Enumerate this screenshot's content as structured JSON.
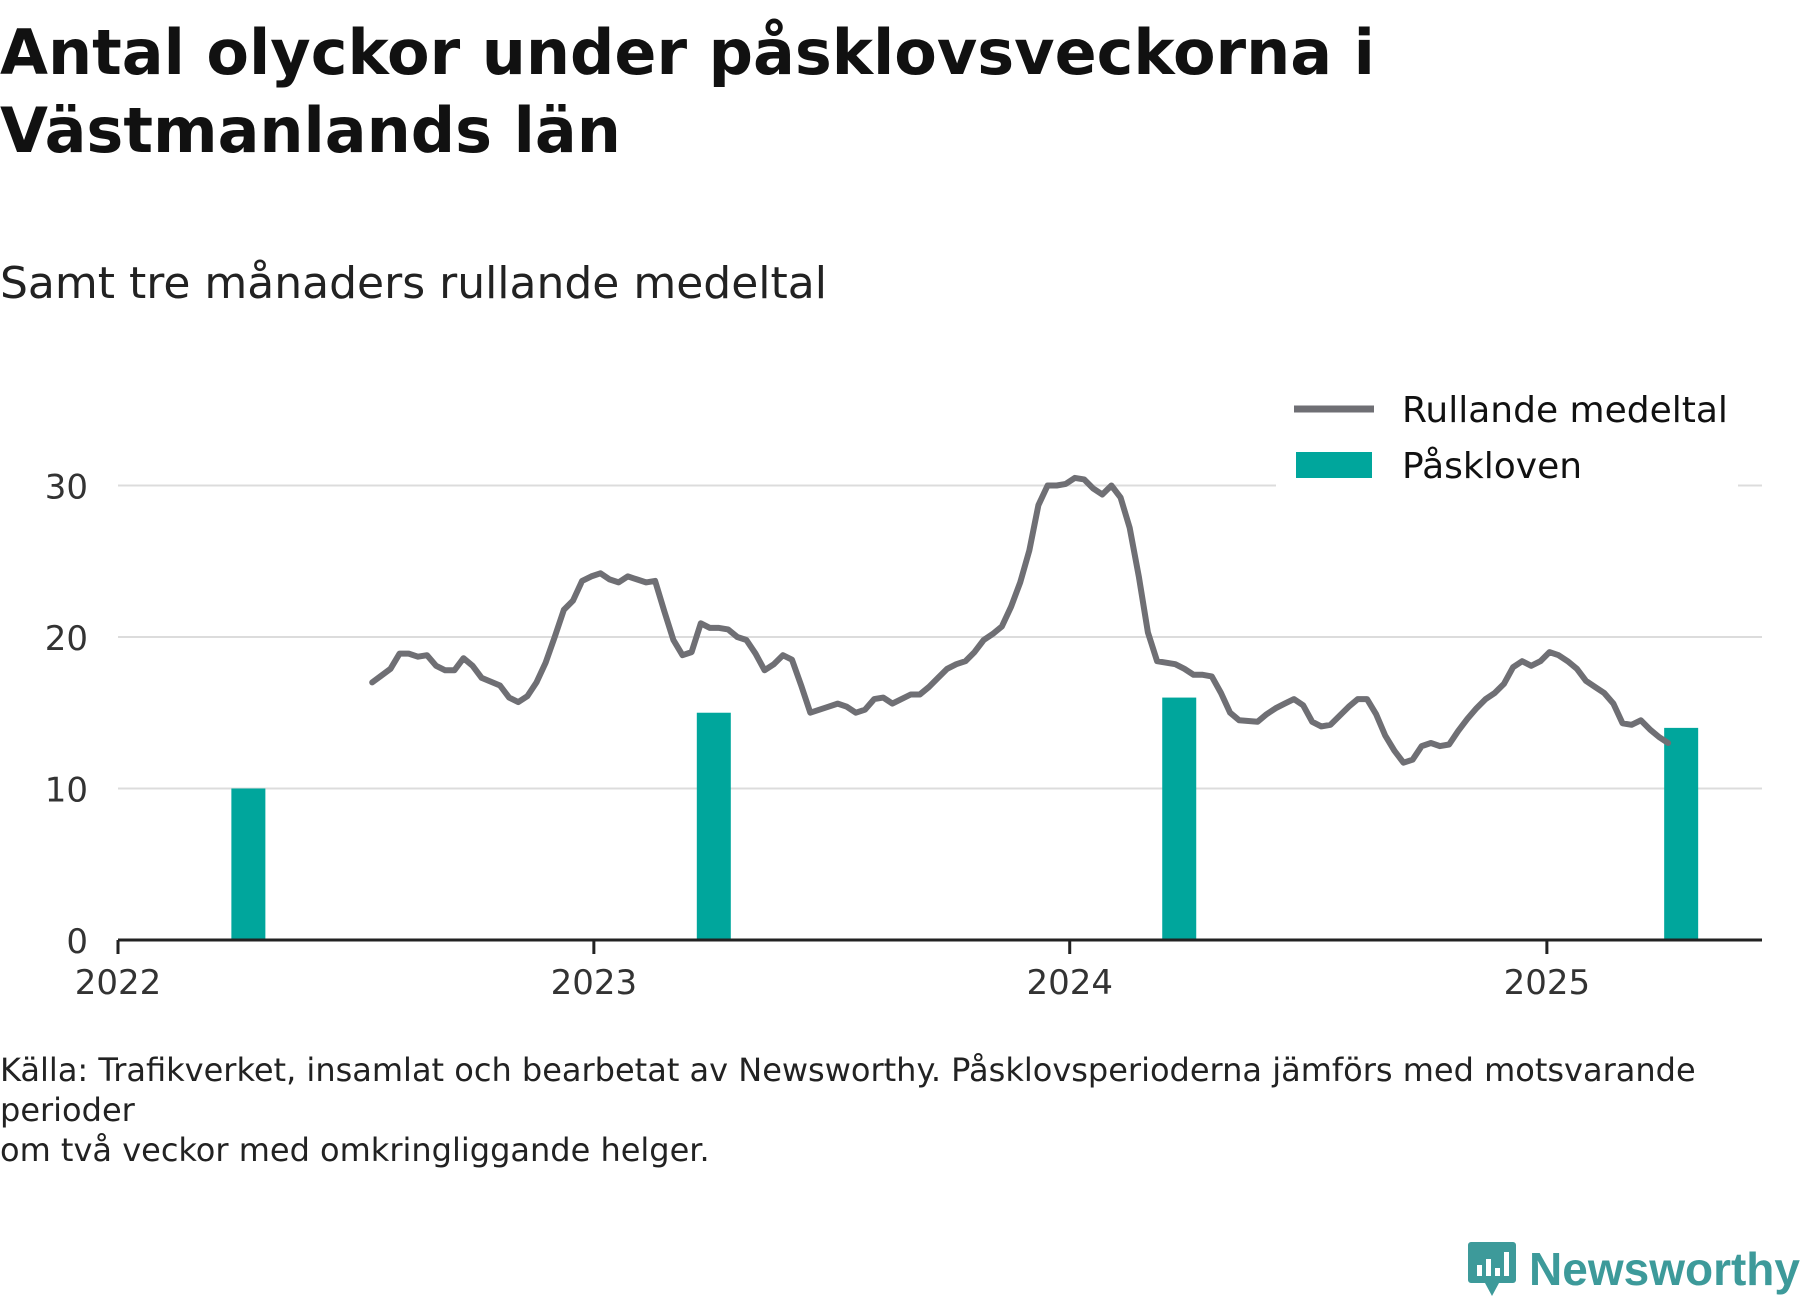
{
  "title": "Antal olyckor under påsklovsveckorna i Västmanlands län",
  "subtitle": "Samt tre månaders rullande medeltal",
  "footer": {
    "line1": "Källa: Trafikverket, insamlat och bearbetat av Newsworthy. Påsklovsperioderna jämförs med motsvarande perioder",
    "line2": "om två veckor med omkringliggande helger."
  },
  "brand": {
    "name": "Newsworthy"
  },
  "colors": {
    "line": "#6f6f74",
    "bar": "#00a69c",
    "grid": "#dcdcdc",
    "axis": "#222222",
    "brand": "#3d9a9a"
  },
  "chart_data": {
    "type": "bar+line",
    "x_axis": {
      "type": "time",
      "range": [
        "2022-01-01",
        "2025-06-15"
      ],
      "ticks": [
        "2022",
        "2023",
        "2024",
        "2025"
      ]
    },
    "y_axis": {
      "range": [
        0,
        33
      ],
      "ticks": [
        0,
        10,
        20,
        30
      ]
    },
    "grid": true,
    "legend": {
      "position": "top-right",
      "entries": [
        {
          "label": "Rullande medeltal",
          "type": "line"
        },
        {
          "label": "Påskloven",
          "type": "bar"
        }
      ]
    },
    "bars": {
      "name": "Påskloven",
      "points": [
        {
          "x": "2022-04-11",
          "y": 10
        },
        {
          "x": "2023-04-03",
          "y": 15
        },
        {
          "x": "2024-03-25",
          "y": 16
        },
        {
          "x": "2025-04-14",
          "y": 14
        }
      ]
    },
    "line": {
      "name": "Rullande medeltal",
      "points": [
        [
          "2022-07-15",
          17.0
        ],
        [
          "2022-07-29",
          17.9
        ],
        [
          "2022-08-05",
          18.9
        ],
        [
          "2022-08-12",
          18.9
        ],
        [
          "2022-08-19",
          18.7
        ],
        [
          "2022-08-26",
          18.8
        ],
        [
          "2022-09-02",
          18.1
        ],
        [
          "2022-09-09",
          17.8
        ],
        [
          "2022-09-16",
          17.8
        ],
        [
          "2022-09-23",
          18.6
        ],
        [
          "2022-09-30",
          18.1
        ],
        [
          "2022-10-07",
          17.3
        ],
        [
          "2022-10-21",
          16.8
        ],
        [
          "2022-10-28",
          16.0
        ],
        [
          "2022-11-04",
          15.7
        ],
        [
          "2022-11-11",
          16.1
        ],
        [
          "2022-11-18",
          17.0
        ],
        [
          "2022-11-25",
          18.3
        ],
        [
          "2022-12-02",
          20.0
        ],
        [
          "2022-12-09",
          21.8
        ],
        [
          "2022-12-16",
          22.4
        ],
        [
          "2022-12-23",
          23.7
        ],
        [
          "2022-12-30",
          24.0
        ],
        [
          "2023-01-06",
          24.2
        ],
        [
          "2023-01-13",
          23.8
        ],
        [
          "2023-01-20",
          23.6
        ],
        [
          "2023-01-27",
          24.0
        ],
        [
          "2023-02-03",
          23.8
        ],
        [
          "2023-02-10",
          23.6
        ],
        [
          "2023-02-17",
          23.7
        ],
        [
          "2023-02-24",
          21.7
        ],
        [
          "2023-03-03",
          19.8
        ],
        [
          "2023-03-10",
          18.8
        ],
        [
          "2023-03-17",
          19.0
        ],
        [
          "2023-03-24",
          20.9
        ],
        [
          "2023-03-31",
          20.6
        ],
        [
          "2023-04-07",
          20.6
        ],
        [
          "2023-04-14",
          20.5
        ],
        [
          "2023-04-21",
          20.0
        ],
        [
          "2023-04-28",
          19.8
        ],
        [
          "2023-05-05",
          18.9
        ],
        [
          "2023-05-12",
          17.8
        ],
        [
          "2023-05-19",
          18.2
        ],
        [
          "2023-05-26",
          18.8
        ],
        [
          "2023-06-02",
          18.5
        ],
        [
          "2023-06-09",
          16.8
        ],
        [
          "2023-06-16",
          15.0
        ],
        [
          "2023-06-30",
          15.4
        ],
        [
          "2023-07-07",
          15.6
        ],
        [
          "2023-07-14",
          15.4
        ],
        [
          "2023-07-21",
          15.0
        ],
        [
          "2023-07-28",
          15.2
        ],
        [
          "2023-08-04",
          15.9
        ],
        [
          "2023-08-11",
          16.0
        ],
        [
          "2023-08-18",
          15.6
        ],
        [
          "2023-09-01",
          16.2
        ],
        [
          "2023-09-08",
          16.2
        ],
        [
          "2023-09-15",
          16.7
        ],
        [
          "2023-09-22",
          17.3
        ],
        [
          "2023-09-29",
          17.9
        ],
        [
          "2023-10-06",
          18.2
        ],
        [
          "2023-10-13",
          18.4
        ],
        [
          "2023-10-20",
          19.0
        ],
        [
          "2023-10-27",
          19.8
        ],
        [
          "2023-11-03",
          20.2
        ],
        [
          "2023-11-10",
          20.7
        ],
        [
          "2023-11-17",
          22.0
        ],
        [
          "2023-11-24",
          23.6
        ],
        [
          "2023-12-01",
          25.7
        ],
        [
          "2023-12-08",
          28.7
        ],
        [
          "2023-12-15",
          30.0
        ],
        [
          "2023-12-22",
          30.0
        ],
        [
          "2023-12-29",
          30.1
        ],
        [
          "2024-01-05",
          30.5
        ],
        [
          "2024-01-12",
          30.4
        ],
        [
          "2024-01-19",
          29.8
        ],
        [
          "2024-01-26",
          29.4
        ],
        [
          "2024-02-02",
          30.0
        ],
        [
          "2024-02-09",
          29.2
        ],
        [
          "2024-02-16",
          27.2
        ],
        [
          "2024-02-23",
          24.0
        ],
        [
          "2024-03-01",
          20.3
        ],
        [
          "2024-03-08",
          18.4
        ],
        [
          "2024-03-22",
          18.2
        ],
        [
          "2024-03-29",
          17.9
        ],
        [
          "2024-04-05",
          17.5
        ],
        [
          "2024-04-12",
          17.5
        ],
        [
          "2024-04-19",
          17.4
        ],
        [
          "2024-04-26",
          16.3
        ],
        [
          "2024-05-03",
          15.0
        ],
        [
          "2024-05-10",
          14.5
        ],
        [
          "2024-05-24",
          14.4
        ],
        [
          "2024-05-31",
          14.9
        ],
        [
          "2024-06-07",
          15.3
        ],
        [
          "2024-06-14",
          15.6
        ],
        [
          "2024-06-21",
          15.9
        ],
        [
          "2024-06-28",
          15.5
        ],
        [
          "2024-07-05",
          14.4
        ],
        [
          "2024-07-12",
          14.1
        ],
        [
          "2024-07-19",
          14.2
        ],
        [
          "2024-07-26",
          14.8
        ],
        [
          "2024-08-02",
          15.4
        ],
        [
          "2024-08-09",
          15.9
        ],
        [
          "2024-08-16",
          15.9
        ],
        [
          "2024-08-23",
          14.9
        ],
        [
          "2024-08-30",
          13.5
        ],
        [
          "2024-09-06",
          12.5
        ],
        [
          "2024-09-13",
          11.7
        ],
        [
          "2024-09-20",
          11.9
        ],
        [
          "2024-09-27",
          12.8
        ],
        [
          "2024-10-04",
          13.0
        ],
        [
          "2024-10-11",
          12.8
        ],
        [
          "2024-10-18",
          12.9
        ],
        [
          "2024-10-25",
          13.8
        ],
        [
          "2024-11-01",
          14.6
        ],
        [
          "2024-11-08",
          15.3
        ],
        [
          "2024-11-15",
          15.9
        ],
        [
          "2024-11-22",
          16.3
        ],
        [
          "2024-11-29",
          16.9
        ],
        [
          "2024-12-06",
          18.0
        ],
        [
          "2024-12-13",
          18.4
        ],
        [
          "2024-12-20",
          18.1
        ],
        [
          "2024-12-27",
          18.4
        ],
        [
          "2025-01-03",
          19.0
        ],
        [
          "2025-01-10",
          18.8
        ],
        [
          "2025-01-17",
          18.4
        ],
        [
          "2025-01-24",
          17.9
        ],
        [
          "2025-01-31",
          17.1
        ],
        [
          "2025-02-07",
          16.7
        ],
        [
          "2025-02-14",
          16.3
        ],
        [
          "2025-02-21",
          15.6
        ],
        [
          "2025-02-28",
          14.3
        ],
        [
          "2025-03-07",
          14.2
        ],
        [
          "2025-03-14",
          14.5
        ],
        [
          "2025-03-21",
          13.9
        ],
        [
          "2025-03-28",
          13.4
        ],
        [
          "2025-04-04",
          13.0
        ]
      ]
    }
  }
}
